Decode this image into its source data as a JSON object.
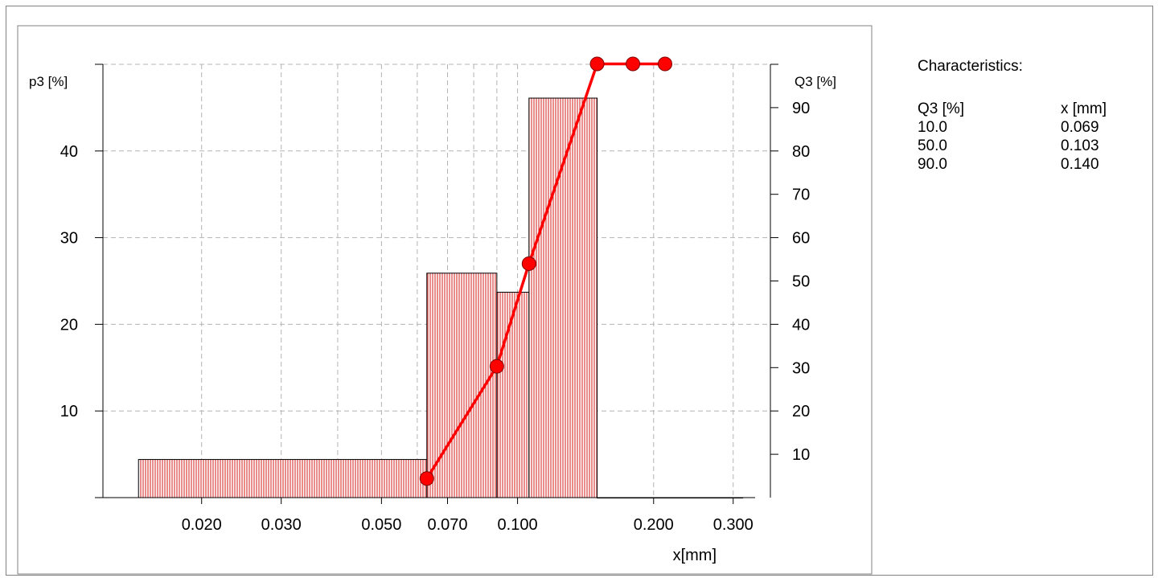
{
  "chart_data": {
    "type": "bar",
    "subtype": "particle-size-distribution",
    "x_scale": "log",
    "xlabel": "x[mm]",
    "ylabel_left": "p3 [%]",
    "ylabel_right": "Q3 [%]",
    "x_ticks": [
      {
        "value": 0.02,
        "label": "0.020"
      },
      {
        "value": 0.03,
        "label": "0.030"
      },
      {
        "value": 0.05,
        "label": "0.050"
      },
      {
        "value": 0.07,
        "label": "0.070"
      },
      {
        "value": 0.1,
        "label": "0.100"
      },
      {
        "value": 0.2,
        "label": "0.200"
      },
      {
        "value": 0.3,
        "label": "0.300"
      }
    ],
    "xlim": [
      0.0125,
      0.33
    ],
    "ylim_left": [
      0,
      50
    ],
    "y_ticks_left": [
      10,
      20,
      30,
      40
    ],
    "ylim_right": [
      0,
      100
    ],
    "y_ticks_right": [
      10,
      20,
      30,
      40,
      50,
      60,
      70,
      80,
      90
    ],
    "grid": true,
    "histogram": {
      "series_name": "p3",
      "color": "#cc0000",
      "bins": [
        {
          "x0": 0.0145,
          "x1": 0.063,
          "value": 4.4
        },
        {
          "x0": 0.063,
          "x1": 0.09,
          "value": 25.9
        },
        {
          "x0": 0.09,
          "x1": 0.106,
          "value": 23.7
        },
        {
          "x0": 0.106,
          "x1": 0.15,
          "value": 46.1
        },
        {
          "x0": 0.15,
          "x1": 0.18,
          "value": 0
        },
        {
          "x0": 0.18,
          "x1": 0.212,
          "value": 0
        },
        {
          "x0": 0.212,
          "x1": 0.315,
          "value": 0
        }
      ]
    },
    "cumulative": {
      "series_name": "Q3",
      "color": "#ff0000",
      "x": [
        0.063,
        0.09,
        0.106,
        0.15,
        0.18,
        0.212
      ],
      "y": [
        4.4,
        30.3,
        54.0,
        100.1,
        100.1,
        100.1
      ]
    }
  },
  "characteristics": {
    "title": "Characteristics:",
    "columns": [
      "Q3 [%]",
      "x [mm]"
    ],
    "rows": [
      [
        "10.0",
        "0.069"
      ],
      [
        "50.0",
        "0.103"
      ],
      [
        "90.0",
        "0.140"
      ]
    ]
  }
}
